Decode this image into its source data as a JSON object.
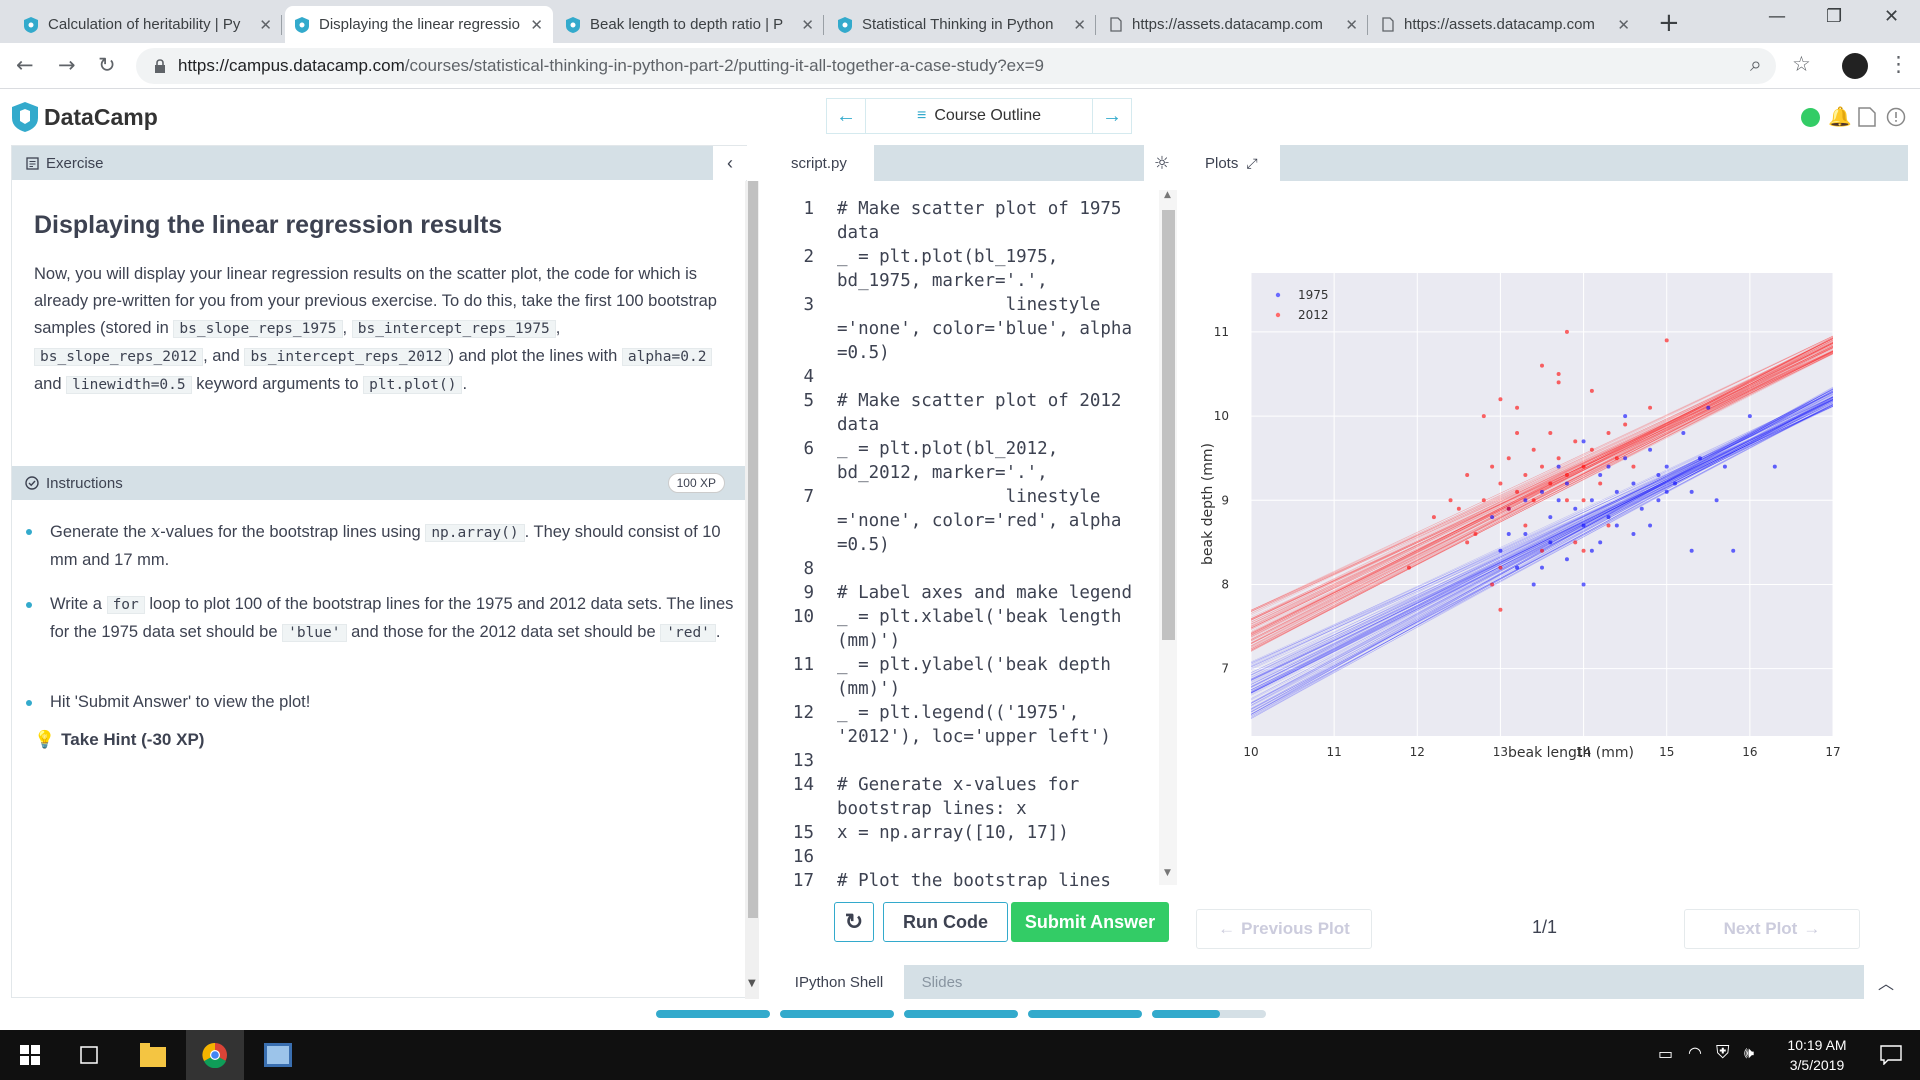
{
  "browser": {
    "tabs": [
      {
        "title": "Calculation of heritability | Py",
        "icon": "datacamp-shield-icon"
      },
      {
        "title": "Displaying the linear regressio",
        "icon": "datacamp-shield-icon"
      },
      {
        "title": "Beak length to depth ratio | P",
        "icon": "datacamp-shield-icon"
      },
      {
        "title": "Statistical Thinking in Python",
        "icon": "datacamp-shield-icon"
      },
      {
        "title": "https://assets.datacamp.com",
        "icon": "page-icon"
      },
      {
        "title": "https://assets.datacamp.com",
        "icon": "page-icon"
      }
    ],
    "url_host": "https://campus.datacamp.com",
    "url_path": "/courses/statistical-thinking-in-python-part-2/putting-it-all-together-a-case-study?ex=9"
  },
  "header": {
    "brand": "DataCamp",
    "course_outline": "Course Outline"
  },
  "exercise": {
    "section_label": "Exercise",
    "title": "Displaying the linear regression results",
    "p1": "Now, you will display your linear regression results on the scatter plot, the code for which is already pre-written for you from your previous exercise. To do this, take the first 100 bootstrap samples (stored in",
    "c1": "bs_slope_reps_1975",
    "c2": "bs_intercept_reps_1975",
    "c3": "bs_slope_reps_2012",
    "and1": ", and",
    "c4": "bs_intercept_reps_2012",
    "p2": ") and plot the lines with",
    "c5": "alpha=0.2",
    "and2": "and",
    "c6": "linewidth=0.5",
    "p3": "keyword arguments to",
    "c7": "plt.plot()",
    "comma": ",",
    "period": "."
  },
  "instructions": {
    "label": "Instructions",
    "xp": "100 XP",
    "b1a": "Generate the",
    "b1x": "x",
    "b1b": "-values for the bootstrap lines using",
    "b1c": "np.array()",
    "b1d": ". They should consist of 10 mm and 17 mm.",
    "b2a": "Write a",
    "b2c": "for",
    "b2b": "loop to plot 100 of the bootstrap lines for the 1975 and 2012 data sets. The lines for the 1975 data set should be",
    "b2blue": "'blue'",
    "b2m": "and those for the 2012 data set should be",
    "b2red": "'red'",
    "b2e": ".",
    "b3": "Hit 'Submit Answer' to view the plot!",
    "hint": "Take Hint (-30 XP)"
  },
  "editor": {
    "filename": "script.py",
    "lines": [
      {
        "n": "1",
        "t": "# Make scatter plot of 1975"
      },
      {
        "n": "",
        "t": "data"
      },
      {
        "n": "2",
        "t": "_ = plt.plot(bl_1975,"
      },
      {
        "n": "",
        "t": "bd_1975, marker='.',"
      },
      {
        "n": "3",
        "t": "                linestyle"
      },
      {
        "n": "",
        "t": "='none', color='blue', alpha"
      },
      {
        "n": "",
        "t": "=0.5)"
      },
      {
        "n": "4",
        "t": ""
      },
      {
        "n": "5",
        "t": "# Make scatter plot of 2012"
      },
      {
        "n": "",
        "t": "data"
      },
      {
        "n": "6",
        "t": "_ = plt.plot(bl_2012,"
      },
      {
        "n": "",
        "t": "bd_2012, marker='.',"
      },
      {
        "n": "7",
        "t": "                linestyle"
      },
      {
        "n": "",
        "t": "='none', color='red', alpha"
      },
      {
        "n": "",
        "t": "=0.5)"
      },
      {
        "n": "8",
        "t": ""
      },
      {
        "n": "9",
        "t": "# Label axes and make legend"
      },
      {
        "n": "10",
        "t": "_ = plt.xlabel('beak length"
      },
      {
        "n": "",
        "t": "(mm)')"
      },
      {
        "n": "11",
        "t": "_ = plt.ylabel('beak depth"
      },
      {
        "n": "",
        "t": "(mm)')"
      },
      {
        "n": "12",
        "t": "_ = plt.legend(('1975',"
      },
      {
        "n": "",
        "t": "'2012'), loc='upper left')"
      },
      {
        "n": "13",
        "t": ""
      },
      {
        "n": "14",
        "t": "# Generate x-values for"
      },
      {
        "n": "",
        "t": "bootstrap lines: x"
      },
      {
        "n": "15",
        "t": "x = np.array([10, 17])"
      },
      {
        "n": "16",
        "t": ""
      },
      {
        "n": "17",
        "t": "# Plot the bootstrap lines"
      }
    ],
    "run_label": "Run Code",
    "submit_label": "Submit Answer"
  },
  "plots": {
    "tab_label": "Plots",
    "prev": "Previous Plot",
    "next": "Next Plot",
    "page": "1/1"
  },
  "bottom": {
    "shell": "IPython Shell",
    "slides": "Slides"
  },
  "taskbar": {
    "time": "10:19 AM",
    "date": "3/5/2019"
  },
  "chart_data": {
    "type": "scatter",
    "xlabel": "beak length (mm)",
    "ylabel": "beak depth (mm)",
    "xlim": [
      10,
      17
    ],
    "ylim": [
      6.2,
      11.7
    ],
    "xticks": [
      "10",
      "11",
      "12",
      "13",
      "14",
      "15",
      "16",
      "17"
    ],
    "yticks": [
      "7",
      "8",
      "9",
      "10",
      "11"
    ],
    "ytick_values": [
      7,
      8,
      9,
      10,
      11
    ],
    "grid": true,
    "legend_loc": "upper left",
    "series": [
      {
        "name": "1975",
        "color": "#0000ff",
        "points": [
          [
            12.9,
            8.8
          ],
          [
            13.1,
            8.6
          ],
          [
            13.3,
            9.0
          ],
          [
            13.5,
            9.1
          ],
          [
            13.6,
            8.5
          ],
          [
            13.7,
            9.4
          ],
          [
            13.8,
            9.2
          ],
          [
            13.9,
            8.9
          ],
          [
            14.0,
            8.7
          ],
          [
            14.1,
            9.0
          ],
          [
            14.2,
            9.3
          ],
          [
            14.3,
            8.8
          ],
          [
            14.4,
            9.1
          ],
          [
            14.5,
            9.5
          ],
          [
            14.6,
            9.2
          ],
          [
            14.7,
            8.9
          ],
          [
            14.8,
            9.6
          ],
          [
            14.9,
            9.0
          ],
          [
            15.0,
            9.4
          ],
          [
            15.1,
            9.2
          ],
          [
            15.2,
            9.8
          ],
          [
            15.3,
            9.1
          ],
          [
            15.4,
            9.5
          ],
          [
            15.5,
            10.1
          ],
          [
            15.7,
            9.4
          ],
          [
            16.0,
            10.0
          ],
          [
            16.3,
            9.4
          ],
          [
            13.2,
            8.2
          ],
          [
            13.4,
            8.0
          ],
          [
            13.8,
            8.3
          ],
          [
            14.2,
            8.5
          ],
          [
            14.6,
            8.6
          ],
          [
            15.3,
            8.4
          ],
          [
            15.8,
            8.4
          ],
          [
            13.0,
            8.4
          ],
          [
            13.5,
            8.2
          ],
          [
            14.0,
            8.0
          ],
          [
            14.1,
            8.4
          ],
          [
            14.4,
            8.7
          ],
          [
            13.6,
            8.8
          ],
          [
            14.8,
            8.7
          ],
          [
            15.0,
            9.1
          ],
          [
            13.3,
            8.6
          ],
          [
            13.7,
            9.0
          ],
          [
            14.3,
            9.4
          ],
          [
            14.9,
            9.3
          ],
          [
            15.6,
            9.0
          ],
          [
            13.1,
            8.9
          ],
          [
            14.5,
            10.0
          ],
          [
            14.0,
            9.7
          ]
        ],
        "lines": {
          "x": [
            10,
            17
          ],
          "intercept_range": [
            6.4,
            7.1
          ],
          "slope_range": [
            0.44,
            0.55
          ]
        }
      },
      {
        "name": "2012",
        "color": "#ff0000",
        "points": [
          [
            12.2,
            8.8
          ],
          [
            12.4,
            9.0
          ],
          [
            12.5,
            8.9
          ],
          [
            12.6,
            9.3
          ],
          [
            12.7,
            8.6
          ],
          [
            12.8,
            9.0
          ],
          [
            12.9,
            9.4
          ],
          [
            13.0,
            9.2
          ],
          [
            13.0,
            8.2
          ],
          [
            13.1,
            9.5
          ],
          [
            13.1,
            8.9
          ],
          [
            13.2,
            9.8
          ],
          [
            13.2,
            9.1
          ],
          [
            13.3,
            9.3
          ],
          [
            13.3,
            8.7
          ],
          [
            13.4,
            9.6
          ],
          [
            13.4,
            9.0
          ],
          [
            13.5,
            9.4
          ],
          [
            13.5,
            8.4
          ],
          [
            13.6,
            9.2
          ],
          [
            13.6,
            9.8
          ],
          [
            13.7,
            9.5
          ],
          [
            13.7,
            10.4
          ],
          [
            13.8,
            9.3
          ],
          [
            13.8,
            9.0
          ],
          [
            13.9,
            9.7
          ],
          [
            13.9,
            8.5
          ],
          [
            14.0,
            9.4
          ],
          [
            14.0,
            9.0
          ],
          [
            14.1,
            10.3
          ],
          [
            14.1,
            9.6
          ],
          [
            14.2,
            9.2
          ],
          [
            14.3,
            9.8
          ],
          [
            14.4,
            9.5
          ],
          [
            14.5,
            9.9
          ],
          [
            14.6,
            9.4
          ],
          [
            14.8,
            10.1
          ],
          [
            15.0,
            10.9
          ],
          [
            13.5,
            10.6
          ],
          [
            13.7,
            10.5
          ],
          [
            13.8,
            11.0
          ],
          [
            13.2,
            10.1
          ],
          [
            13.0,
            10.2
          ],
          [
            12.8,
            10.0
          ],
          [
            12.6,
            8.5
          ],
          [
            12.9,
            8.0
          ],
          [
            13.0,
            7.7
          ],
          [
            11.9,
            8.2
          ],
          [
            14.3,
            8.7
          ],
          [
            14.0,
            8.4
          ]
        ],
        "lines": {
          "x": [
            10,
            17
          ],
          "intercept_range": [
            7.2,
            7.7
          ],
          "slope_range": [
            0.45,
            0.52
          ]
        }
      }
    ]
  }
}
